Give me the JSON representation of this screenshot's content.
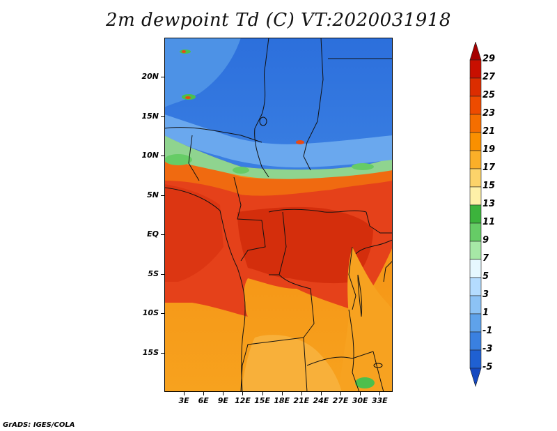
{
  "title": "2m dewpoint Td (C) VT:2020031918",
  "footer": "GrADS: IGES/COLA",
  "map": {
    "lon_range": [
      0,
      35
    ],
    "lat_range": [
      -20,
      25
    ],
    "lat_ticks": [
      "20N",
      "15N",
      "10N",
      "5N",
      "EQ",
      "5S",
      "10S",
      "15S"
    ],
    "lat_values": [
      20,
      15,
      10,
      5,
      0,
      -5,
      -10,
      -15
    ],
    "lon_ticks": [
      "3E",
      "6E",
      "9E",
      "12E",
      "15E",
      "18E",
      "21E",
      "24E",
      "27E",
      "30E",
      "33E"
    ],
    "lon_values": [
      3,
      6,
      9,
      12,
      15,
      18,
      21,
      24,
      27,
      30,
      33
    ]
  },
  "colorbar": {
    "labels": [
      "29",
      "27",
      "25",
      "23",
      "21",
      "19",
      "17",
      "15",
      "13",
      "11",
      "9",
      "7",
      "5",
      "3",
      "1",
      "-1",
      "-3",
      "-5"
    ],
    "colors": [
      "#a50000",
      "#c80f00",
      "#dc2d00",
      "#ee4b00",
      "#f56e00",
      "#fa9000",
      "#fbaf28",
      "#fcd36a",
      "#fef0a8",
      "#3cb33c",
      "#66cc66",
      "#a6e8a6",
      "#e6f8ff",
      "#b4dcff",
      "#8cc2f5",
      "#5fa2ea",
      "#3a80e0",
      "#1f60d2",
      "#1448c0"
    ]
  }
}
